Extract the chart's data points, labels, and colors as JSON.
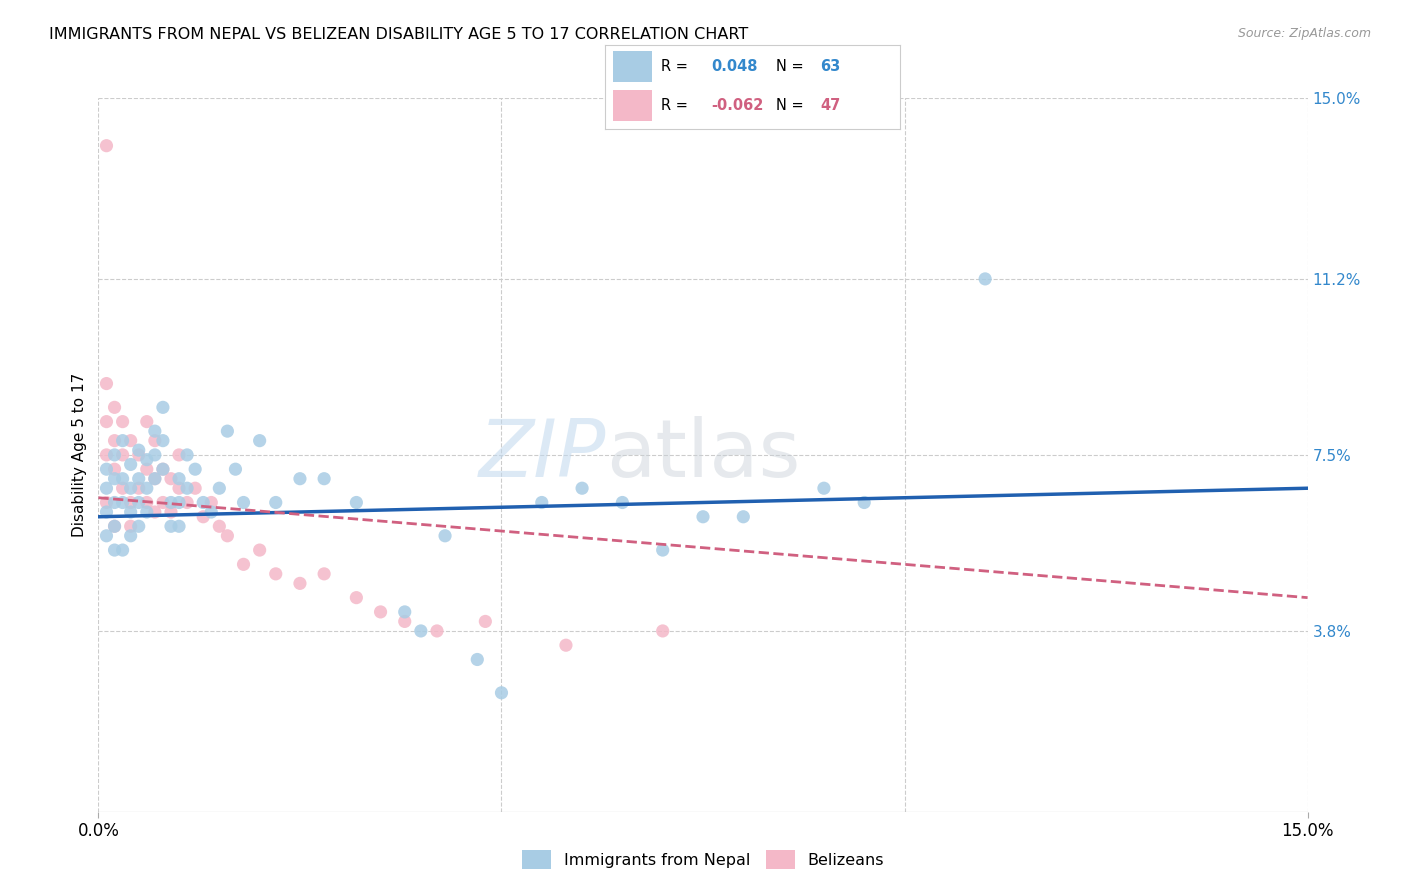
{
  "title": "IMMIGRANTS FROM NEPAL VS BELIZEAN DISABILITY AGE 5 TO 17 CORRELATION CHART",
  "source": "Source: ZipAtlas.com",
  "ylabel": "Disability Age 5 to 17",
  "xlim": [
    0.0,
    0.15
  ],
  "ylim": [
    0.0,
    0.15
  ],
  "ytick_labels": [
    "3.8%",
    "7.5%",
    "11.2%",
    "15.0%"
  ],
  "ytick_values": [
    0.038,
    0.075,
    0.112,
    0.15
  ],
  "blue_color": "#a8cce4",
  "pink_color": "#f4b8c8",
  "line_blue": "#2060b0",
  "line_pink": "#d06080",
  "watermark": "ZIPatlas",
  "nepal_x": [
    0.001,
    0.001,
    0.001,
    0.001,
    0.002,
    0.002,
    0.002,
    0.002,
    0.002,
    0.003,
    0.003,
    0.003,
    0.003,
    0.004,
    0.004,
    0.004,
    0.004,
    0.005,
    0.005,
    0.005,
    0.005,
    0.006,
    0.006,
    0.006,
    0.007,
    0.007,
    0.007,
    0.008,
    0.008,
    0.008,
    0.009,
    0.009,
    0.01,
    0.01,
    0.01,
    0.011,
    0.011,
    0.012,
    0.013,
    0.014,
    0.015,
    0.016,
    0.017,
    0.018,
    0.02,
    0.022,
    0.025,
    0.028,
    0.032,
    0.038,
    0.04,
    0.043,
    0.047,
    0.05,
    0.055,
    0.06,
    0.07,
    0.08,
    0.095,
    0.11,
    0.065,
    0.075,
    0.09
  ],
  "nepal_y": [
    0.063,
    0.068,
    0.072,
    0.058,
    0.07,
    0.065,
    0.075,
    0.06,
    0.055,
    0.078,
    0.065,
    0.07,
    0.055,
    0.073,
    0.068,
    0.063,
    0.058,
    0.076,
    0.07,
    0.065,
    0.06,
    0.074,
    0.068,
    0.063,
    0.08,
    0.075,
    0.07,
    0.085,
    0.078,
    0.072,
    0.065,
    0.06,
    0.07,
    0.065,
    0.06,
    0.075,
    0.068,
    0.072,
    0.065,
    0.063,
    0.068,
    0.08,
    0.072,
    0.065,
    0.078,
    0.065,
    0.07,
    0.07,
    0.065,
    0.042,
    0.038,
    0.058,
    0.032,
    0.025,
    0.065,
    0.068,
    0.055,
    0.062,
    0.065,
    0.112,
    0.065,
    0.062,
    0.068
  ],
  "belize_x": [
    0.001,
    0.001,
    0.001,
    0.001,
    0.001,
    0.002,
    0.002,
    0.002,
    0.002,
    0.003,
    0.003,
    0.003,
    0.004,
    0.004,
    0.004,
    0.005,
    0.005,
    0.006,
    0.006,
    0.006,
    0.007,
    0.007,
    0.007,
    0.008,
    0.008,
    0.009,
    0.009,
    0.01,
    0.01,
    0.011,
    0.012,
    0.013,
    0.014,
    0.015,
    0.016,
    0.018,
    0.02,
    0.022,
    0.025,
    0.028,
    0.032,
    0.035,
    0.038,
    0.042,
    0.048,
    0.058,
    0.07
  ],
  "belize_y": [
    0.075,
    0.082,
    0.09,
    0.065,
    0.14,
    0.078,
    0.072,
    0.085,
    0.06,
    0.082,
    0.075,
    0.068,
    0.078,
    0.065,
    0.06,
    0.075,
    0.068,
    0.082,
    0.072,
    0.065,
    0.078,
    0.07,
    0.063,
    0.072,
    0.065,
    0.07,
    0.063,
    0.075,
    0.068,
    0.065,
    0.068,
    0.062,
    0.065,
    0.06,
    0.058,
    0.052,
    0.055,
    0.05,
    0.048,
    0.05,
    0.045,
    0.042,
    0.04,
    0.038,
    0.04,
    0.035,
    0.038
  ],
  "nepal_line_x": [
    0.0,
    0.15
  ],
  "nepal_line_y": [
    0.062,
    0.068
  ],
  "belize_line_x": [
    0.0,
    0.15
  ],
  "belize_line_y": [
    0.066,
    0.045
  ]
}
